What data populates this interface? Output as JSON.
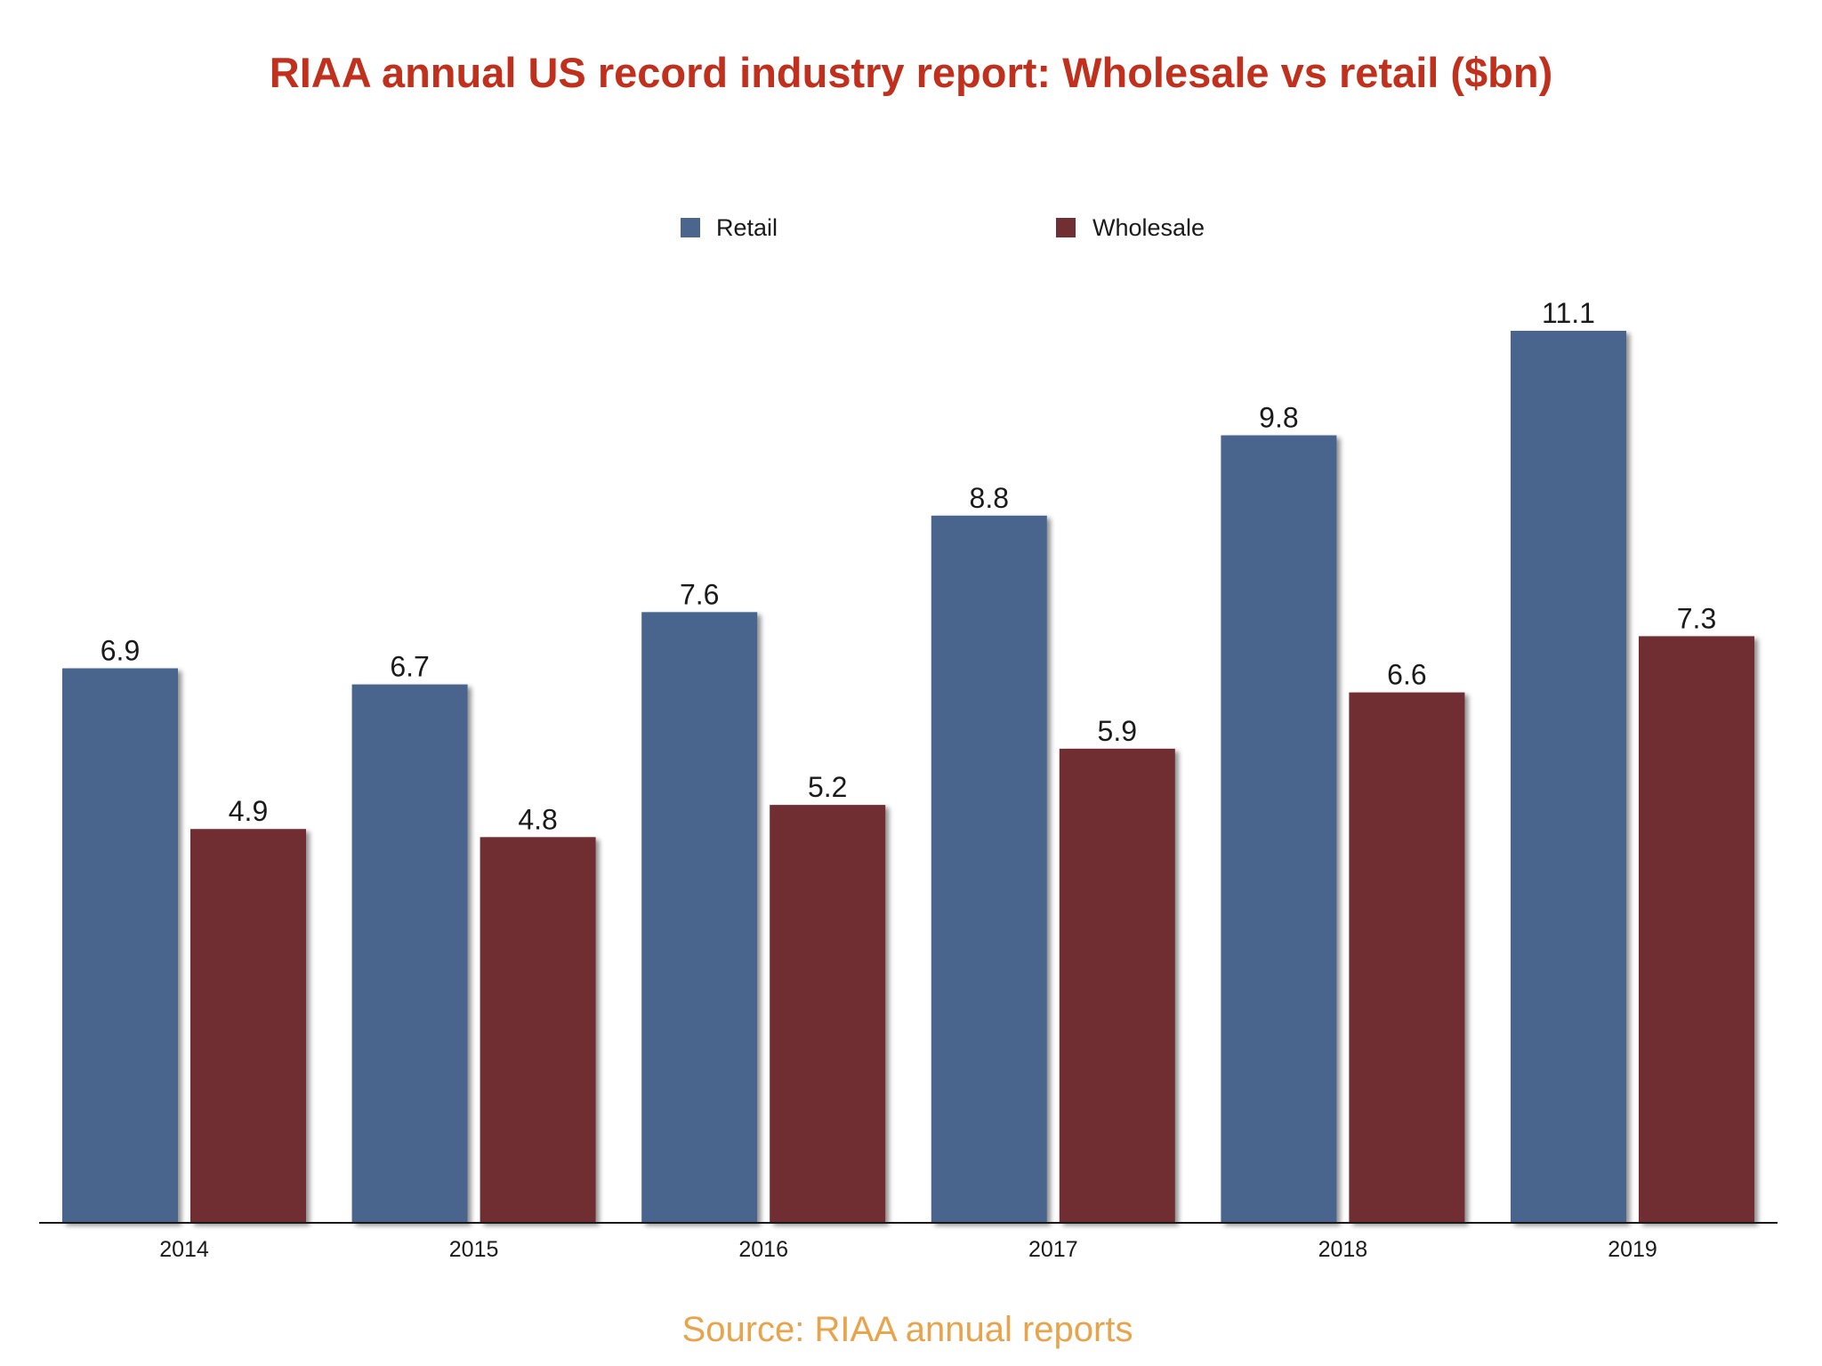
{
  "colors": {
    "retail": "#4a658e",
    "wholesale": "#6f2f33",
    "title": "#c0301d",
    "source": "#e8a34b",
    "axis": "#1a1a1a"
  },
  "chart_data": {
    "type": "bar",
    "title": "RIAA annual US record industry report: Wholesale vs retail ($bn)",
    "categories": [
      "2014",
      "2015",
      "2016",
      "2017",
      "2018",
      "2019"
    ],
    "series": [
      {
        "name": "Retail",
        "values": [
          6.9,
          6.7,
          7.6,
          8.8,
          9.8,
          11.1
        ]
      },
      {
        "name": "Wholesale",
        "values": [
          4.9,
          4.8,
          5.2,
          5.9,
          6.6,
          7.3
        ]
      }
    ],
    "value_labels": {
      "Retail": [
        "6.9",
        "6.7",
        "7.6",
        "8.8",
        "9.8",
        "11.1"
      ],
      "Wholesale": [
        "4.9",
        "4.8",
        "5.2",
        "5.9",
        "6.6",
        "7.3"
      ]
    },
    "xlabel": "",
    "ylabel": "",
    "ylim": [
      0,
      11.1
    ],
    "grid": false,
    "legend": "top-center",
    "source": "Source: RIAA annual reports"
  }
}
